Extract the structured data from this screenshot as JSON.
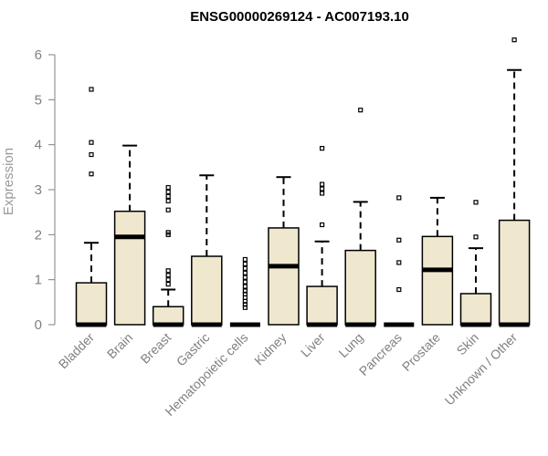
{
  "chart_data": {
    "type": "boxplot",
    "title": "ENSG00000269124 - AC007193.10",
    "ylabel": "Expression",
    "xlabel": "",
    "ylim": [
      0,
      6.3
    ],
    "yticks": [
      0,
      1,
      2,
      3,
      4,
      5,
      6
    ],
    "grid": false,
    "colors": {
      "box_fill": "#efe8cf",
      "box_stroke": "#000000",
      "axis": "#808080",
      "title": "#000000"
    },
    "categories": [
      "Bladder",
      "Brain",
      "Breast",
      "Gastric",
      "Hematopoietic cells",
      "Kidney",
      "Liver",
      "Lung",
      "Pancreas",
      "Prostate",
      "Skin",
      "Unknown / Other"
    ],
    "boxes": [
      {
        "category": "Bladder",
        "min": 0,
        "q1": 0,
        "median": 0,
        "q3": 0.93,
        "max": 1.82,
        "outliers": [
          3.35,
          3.78,
          4.05,
          5.23
        ]
      },
      {
        "category": "Brain",
        "min": 0,
        "q1": 0,
        "median": 1.95,
        "q3": 2.52,
        "max": 3.98,
        "outliers": []
      },
      {
        "category": "Breast",
        "min": 0,
        "q1": 0,
        "median": 0,
        "q3": 0.4,
        "max": 0.78,
        "outliers": [
          0.9,
          1.0,
          1.1,
          1.2,
          2.0,
          2.05,
          2.55,
          2.75,
          2.85,
          2.95,
          3.05
        ]
      },
      {
        "category": "Gastric",
        "min": 0,
        "q1": 0,
        "median": 0,
        "q3": 1.52,
        "max": 3.32,
        "outliers": []
      },
      {
        "category": "Hematopoietic cells",
        "min": 0,
        "q1": 0,
        "median": 0,
        "q3": 0,
        "max": 0,
        "outliers": [
          0.38,
          0.45,
          0.52,
          0.6,
          0.68,
          0.75,
          0.85,
          0.95,
          1.05,
          1.15,
          1.25,
          1.35,
          1.45
        ]
      },
      {
        "category": "Kidney",
        "min": 0,
        "q1": 0,
        "median": 1.3,
        "q3": 2.15,
        "max": 3.28,
        "outliers": []
      },
      {
        "category": "Liver",
        "min": 0,
        "q1": 0,
        "median": 0,
        "q3": 0.85,
        "max": 1.85,
        "outliers": [
          2.22,
          2.92,
          3.02,
          3.12,
          3.92
        ]
      },
      {
        "category": "Lung",
        "min": 0,
        "q1": 0,
        "median": 0,
        "q3": 1.65,
        "max": 2.73,
        "outliers": [
          4.77
        ]
      },
      {
        "category": "Pancreas",
        "min": 0,
        "q1": 0,
        "median": 0,
        "q3": 0,
        "max": 0,
        "outliers": [
          0.78,
          1.38,
          1.88,
          2.82
        ]
      },
      {
        "category": "Prostate",
        "min": 0,
        "q1": 0,
        "median": 1.22,
        "q3": 1.96,
        "max": 2.82,
        "outliers": []
      },
      {
        "category": "Skin",
        "min": 0,
        "q1": 0,
        "median": 0,
        "q3": 0.69,
        "max": 1.7,
        "outliers": [
          1.95,
          2.72
        ]
      },
      {
        "category": "Unknown / Other",
        "min": 0,
        "q1": 0,
        "median": 0,
        "q3": 2.32,
        "max": 5.66,
        "outliers": [
          6.33
        ]
      }
    ]
  }
}
